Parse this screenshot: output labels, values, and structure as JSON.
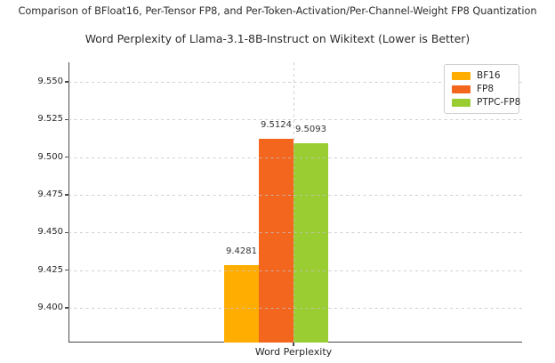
{
  "figure": {
    "suptitle": "Comparison of BFloat16, Per-Tensor FP8, and Per-Token-Activation/Per-Channel-Weight FP8 Quantization"
  },
  "chart_data": {
    "type": "bar",
    "title": "Word Perplexity of Llama-3.1-8B-Instruct on Wikitext (Lower is Better)",
    "suptitle": "Comparison of BFloat16, Per-Tensor FP8, and Per-Token-Activation/Per-Channel-Weight FP8 Quantization",
    "categories": [
      "Word Perplexity"
    ],
    "xlabel": "Word Perplexity",
    "ylabel": "",
    "series": [
      {
        "name": "BF16",
        "values": [
          9.4281
        ],
        "label": "9.4281",
        "color": "#FFAD00"
      },
      {
        "name": "FP8",
        "values": [
          9.5124
        ],
        "label": "9.5124",
        "color": "#F2661E"
      },
      {
        "name": "PTPC-FP8",
        "values": [
          9.5093
        ],
        "label": "9.5093",
        "color": "#9ACD32"
      }
    ],
    "ylim": [
      9.377,
      9.563
    ],
    "yticks": [
      9.4,
      9.425,
      9.45,
      9.475,
      9.5,
      9.525,
      9.55
    ],
    "ytick_labels": [
      "9.400",
      "9.425",
      "9.450",
      "9.475",
      "9.500",
      "9.525",
      "9.550"
    ],
    "grid": true,
    "grid_style": "dashed",
    "legend_position": "upper right",
    "note": "lower is better"
  }
}
